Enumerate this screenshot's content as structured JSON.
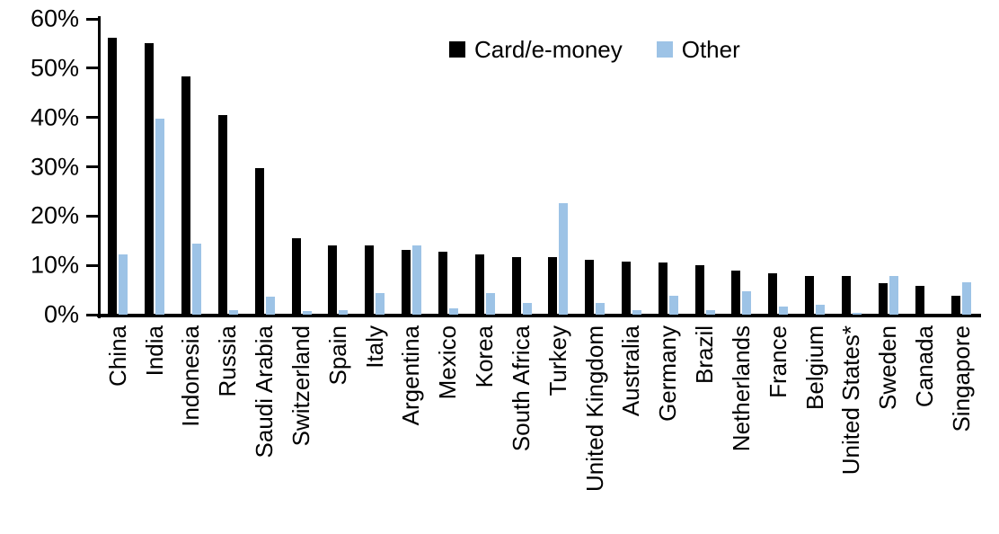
{
  "chart_data": {
    "type": "bar",
    "title": "",
    "xlabel": "",
    "ylabel": "",
    "ylim": [
      0,
      60
    ],
    "ytick_step": 10,
    "yticks": [
      "0%",
      "10%",
      "20%",
      "30%",
      "40%",
      "50%",
      "60%"
    ],
    "grid": false,
    "legend_position": "top-center",
    "categories": [
      "China",
      "India",
      "Indonesia",
      "Russia",
      "Saudi Arabia",
      "Switzerland",
      "Spain",
      "Italy",
      "Argentina",
      "Mexico",
      "Korea",
      "South Africa",
      "Turkey",
      "United Kingdom",
      "Australia",
      "Germany",
      "Brazil",
      "Netherlands",
      "France",
      "Belgium",
      "United States*",
      "Sweden",
      "Canada",
      "Singapore"
    ],
    "series": [
      {
        "name": "Card/e-money",
        "color": "#000000",
        "values": [
          56.2,
          55.0,
          48.3,
          40.4,
          29.8,
          15.5,
          14.1,
          14.0,
          13.2,
          12.8,
          12.2,
          11.7,
          11.6,
          11.1,
          10.8,
          10.5,
          10.0,
          9.0,
          8.4,
          7.9,
          7.8,
          6.4,
          5.9,
          3.8
        ]
      },
      {
        "name": "Other",
        "color": "#9DC3E6",
        "values": [
          12.2,
          39.7,
          14.4,
          0.9,
          3.7,
          0.7,
          0.9,
          4.4,
          14.0,
          1.3,
          4.4,
          2.3,
          22.6,
          2.3,
          0.9,
          3.8,
          1.0,
          4.7,
          1.6,
          2.0,
          0.4,
          7.9,
          0.0,
          6.5
        ]
      }
    ],
    "colors": {
      "axis": "#000000",
      "background": "#ffffff"
    }
  }
}
